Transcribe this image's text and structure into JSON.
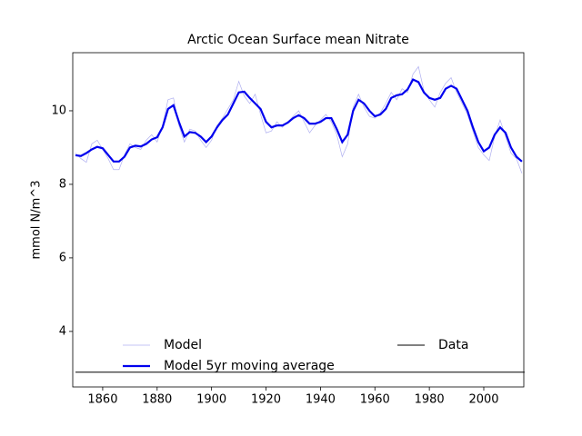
{
  "chart_data": {
    "type": "line",
    "title": "Arctic Ocean Surface mean Nitrate",
    "ylabel": "mmol N/m^3",
    "x": [
      1850,
      1852,
      1854,
      1856,
      1858,
      1860,
      1862,
      1864,
      1866,
      1868,
      1870,
      1872,
      1874,
      1876,
      1878,
      1880,
      1882,
      1884,
      1886,
      1888,
      1890,
      1892,
      1894,
      1896,
      1898,
      1900,
      1902,
      1904,
      1906,
      1908,
      1910,
      1912,
      1914,
      1916,
      1918,
      1920,
      1922,
      1924,
      1926,
      1928,
      1930,
      1932,
      1934,
      1936,
      1938,
      1940,
      1942,
      1944,
      1946,
      1948,
      1950,
      1952,
      1954,
      1956,
      1958,
      1960,
      1962,
      1964,
      1966,
      1968,
      1970,
      1972,
      1974,
      1976,
      1978,
      1980,
      1982,
      1984,
      1986,
      1988,
      1990,
      1992,
      1994,
      1996,
      1998,
      2000,
      2002,
      2004,
      2006,
      2008,
      2010,
      2012,
      2014
    ],
    "series": [
      {
        "name": "Model",
        "color": "#b0b0f0",
        "width": 0.7,
        "values": [
          8.85,
          8.7,
          8.6,
          9.1,
          9.2,
          8.95,
          8.7,
          8.4,
          8.4,
          8.8,
          9.1,
          9.0,
          8.95,
          9.2,
          9.35,
          9.15,
          9.6,
          10.3,
          10.35,
          9.6,
          9.15,
          9.5,
          9.45,
          9.2,
          9.0,
          9.2,
          9.6,
          9.8,
          10.05,
          10.3,
          10.8,
          10.4,
          10.2,
          10.45,
          9.9,
          9.4,
          9.45,
          9.7,
          9.55,
          9.7,
          9.85,
          10.0,
          9.7,
          9.4,
          9.6,
          9.75,
          9.9,
          9.7,
          9.35,
          8.75,
          9.1,
          10.1,
          10.45,
          10.1,
          9.85,
          9.8,
          9.95,
          10.2,
          10.5,
          10.3,
          10.6,
          10.5,
          11.0,
          11.2,
          10.55,
          10.3,
          10.1,
          10.5,
          10.75,
          10.9,
          10.5,
          10.2,
          9.9,
          9.45,
          9.0,
          8.8,
          8.65,
          9.3,
          9.75,
          9.3,
          8.85,
          8.7,
          8.3
        ]
      },
      {
        "name": "Model 5yr moving average",
        "color": "#0000ee",
        "width": 2.2,
        "values": [
          8.79,
          8.77,
          8.85,
          8.95,
          9.02,
          8.98,
          8.8,
          8.62,
          8.62,
          8.75,
          9.0,
          9.05,
          9.03,
          9.1,
          9.22,
          9.28,
          9.55,
          10.05,
          10.15,
          9.7,
          9.3,
          9.42,
          9.4,
          9.3,
          9.15,
          9.3,
          9.55,
          9.75,
          9.9,
          10.2,
          10.5,
          10.52,
          10.35,
          10.2,
          10.05,
          9.7,
          9.55,
          9.6,
          9.6,
          9.68,
          9.8,
          9.88,
          9.8,
          9.65,
          9.65,
          9.7,
          9.8,
          9.8,
          9.5,
          9.15,
          9.35,
          10.0,
          10.3,
          10.2,
          10.0,
          9.85,
          9.9,
          10.05,
          10.35,
          10.42,
          10.45,
          10.58,
          10.85,
          10.78,
          10.5,
          10.35,
          10.3,
          10.35,
          10.6,
          10.68,
          10.6,
          10.3,
          10.0,
          9.55,
          9.15,
          8.9,
          9.0,
          9.35,
          9.55,
          9.4,
          9.0,
          8.75,
          8.62
        ]
      },
      {
        "name": "Data",
        "color": "#000000",
        "width": 1,
        "values": [
          2.89,
          2.89
        ],
        "x": [
          1850,
          2015
        ]
      }
    ],
    "xlim": [
      1849,
      2014.7
    ],
    "ylim": [
      2.49,
      11.58
    ],
    "xticks": [
      1860,
      1880,
      1900,
      1920,
      1940,
      1960,
      1980,
      2000
    ],
    "yticks": [
      4,
      6,
      8,
      10
    ]
  }
}
